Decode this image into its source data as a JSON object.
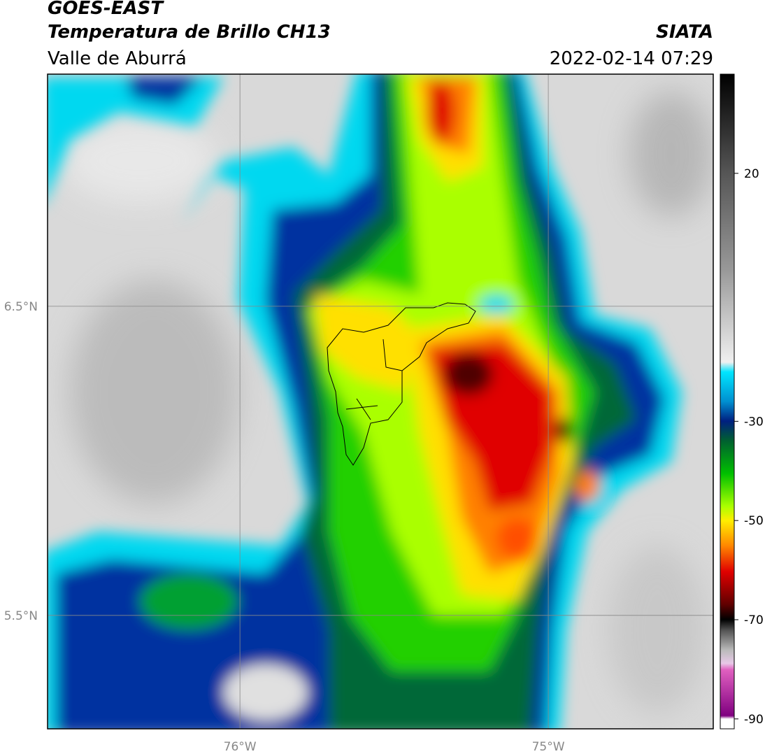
{
  "header": {
    "title": "GOES-EAST",
    "subtitle": "Temperatura de Brillo CH13",
    "region": "Valle de Aburrá",
    "source": "SIATA",
    "datetime": "2022-02-14 07:29"
  },
  "map": {
    "xlim": [
      -76.624,
      -74.465
    ],
    "ylim": [
      5.133,
      7.251
    ],
    "xticks": [
      {
        "value": -76,
        "label": "76°W"
      },
      {
        "value": -75,
        "label": "75°W"
      }
    ],
    "yticks": [
      {
        "value": 6.5,
        "label": "6.5°N"
      },
      {
        "value": 5.5,
        "label": "5.5°N"
      }
    ],
    "grid": true
  },
  "colorbar": {
    "lim": [
      -92,
      40
    ],
    "ticks": [
      20,
      -30,
      -50,
      -70,
      -90
    ]
  }
}
